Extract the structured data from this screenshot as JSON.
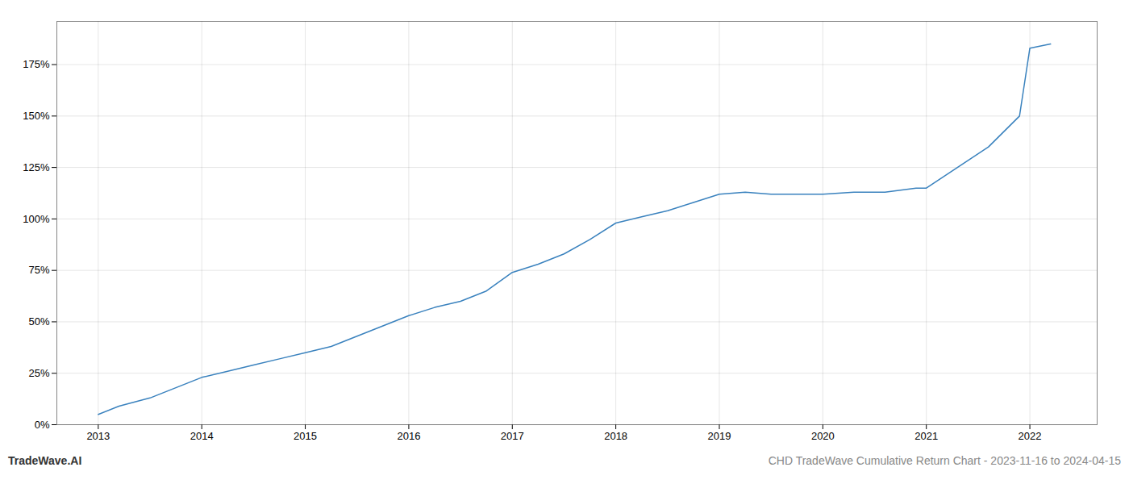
{
  "chart_data": {
    "type": "line",
    "title": "CHD TradeWave Cumulative Return Chart - 2023-11-16 to 2024-04-15",
    "annotations": [
      "TradeWave.AI"
    ],
    "x": [
      2013.0,
      2013.2,
      2013.5,
      2013.75,
      2014.0,
      2014.25,
      2014.5,
      2014.75,
      2015.0,
      2015.25,
      2015.5,
      2015.75,
      2016.0,
      2016.25,
      2016.5,
      2016.75,
      2017.0,
      2017.25,
      2017.5,
      2017.75,
      2018.0,
      2018.25,
      2018.5,
      2018.75,
      2019.0,
      2019.25,
      2019.5,
      2019.75,
      2020.0,
      2020.3,
      2020.6,
      2020.9,
      2021.0,
      2021.3,
      2021.6,
      2021.9,
      2022.0,
      2022.2
    ],
    "values": [
      5,
      9,
      13,
      18,
      23,
      26,
      29,
      32,
      35,
      38,
      43,
      48,
      53,
      57,
      60,
      65,
      74,
      78,
      83,
      90,
      98,
      101,
      104,
      108,
      112,
      113,
      112,
      112,
      112,
      113,
      113,
      115,
      115,
      125,
      135,
      150,
      183,
      185
    ],
    "color": "#3a82be",
    "xlim": [
      2012.6,
      2022.65
    ],
    "xticks": [
      2013,
      2014,
      2015,
      2016,
      2017,
      2018,
      2019,
      2020,
      2021,
      2022
    ],
    "ylim": [
      0,
      196
    ],
    "yticks": [
      {
        "value": 0,
        "label": "0%"
      },
      {
        "value": 25,
        "label": "25%"
      },
      {
        "value": 50,
        "label": "50%"
      },
      {
        "value": 75,
        "label": "75%"
      },
      {
        "value": 100,
        "label": "100%"
      },
      {
        "value": 125,
        "label": "125%"
      },
      {
        "value": 150,
        "label": "150%"
      },
      {
        "value": 175,
        "label": "175%"
      }
    ],
    "grid": true
  }
}
